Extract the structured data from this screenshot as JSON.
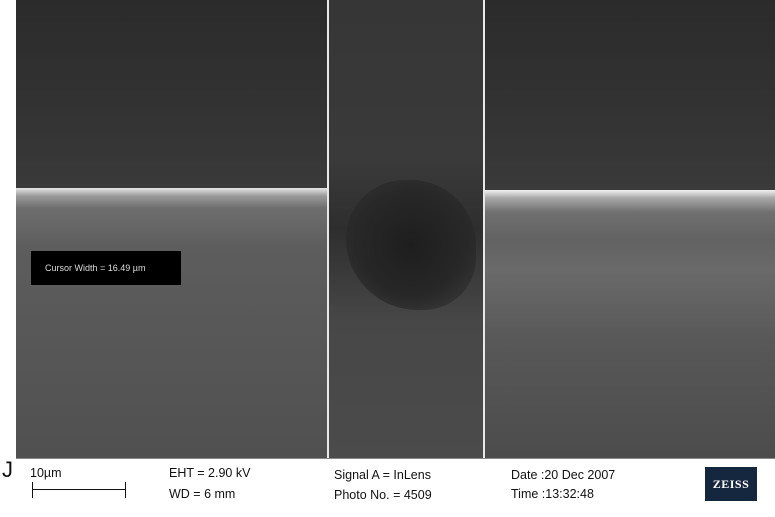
{
  "image": {
    "cursor_width_text": "Cursor Width = 16.49 µm",
    "left_glyph": "J"
  },
  "info_bar": {
    "scale_label": "10µm",
    "eht": "EHT =  2.90 kV",
    "wd": "WD =    6 mm",
    "signal": "Signal A = InLens",
    "photo_no": "Photo No. = 4509",
    "date": "Date :20 Dec 2007",
    "time": "Time :13:32:48",
    "logo_text": "ZEISS"
  },
  "colors": {
    "info_bar_bg": "#ffffff",
    "logo_bg": "#15273f",
    "cursor_box_bg": "#000000"
  }
}
